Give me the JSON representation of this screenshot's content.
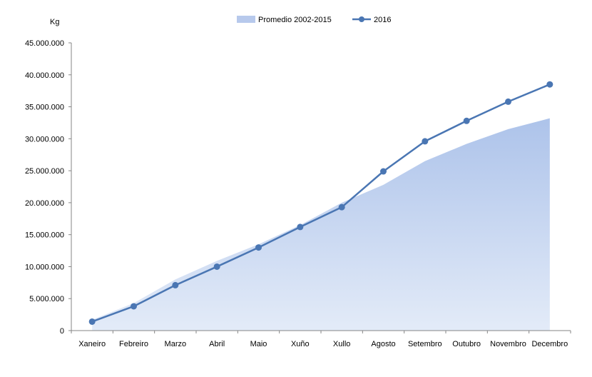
{
  "chart_data": {
    "type": "area",
    "ylabel": "Kg",
    "ylim": [
      0,
      45000000
    ],
    "yticks": [
      0,
      5000000,
      10000000,
      15000000,
      20000000,
      25000000,
      30000000,
      35000000,
      40000000,
      45000000
    ],
    "ytick_labels": [
      "0",
      "5.000.000",
      "10.000.000",
      "15.000.000",
      "20.000.000",
      "25.000.000",
      "30.000.000",
      "35.000.000",
      "40.000.000",
      "45.000.000"
    ],
    "categories": [
      "Xaneiro",
      "Febreiro",
      "Marzo",
      "Abril",
      "Maio",
      "Xuño",
      "Xullo",
      "Agosto",
      "Setembro",
      "Outubro",
      "Novembro",
      "Decembro"
    ],
    "series": [
      {
        "name": "Promedio 2002-2015",
        "type": "area",
        "color": "#b7c9ec",
        "values": [
          1700000,
          4300000,
          8000000,
          10900000,
          13500000,
          16500000,
          20000000,
          22800000,
          26500000,
          29200000,
          31500000,
          33200000
        ]
      },
      {
        "name": "2016",
        "type": "line",
        "color": "#4a76b3",
        "values": [
          1400000,
          3800000,
          7100000,
          10000000,
          13000000,
          16200000,
          19300000,
          24900000,
          29600000,
          32800000,
          35800000,
          38500000
        ]
      }
    ],
    "legend": "top-center",
    "grid": false
  }
}
